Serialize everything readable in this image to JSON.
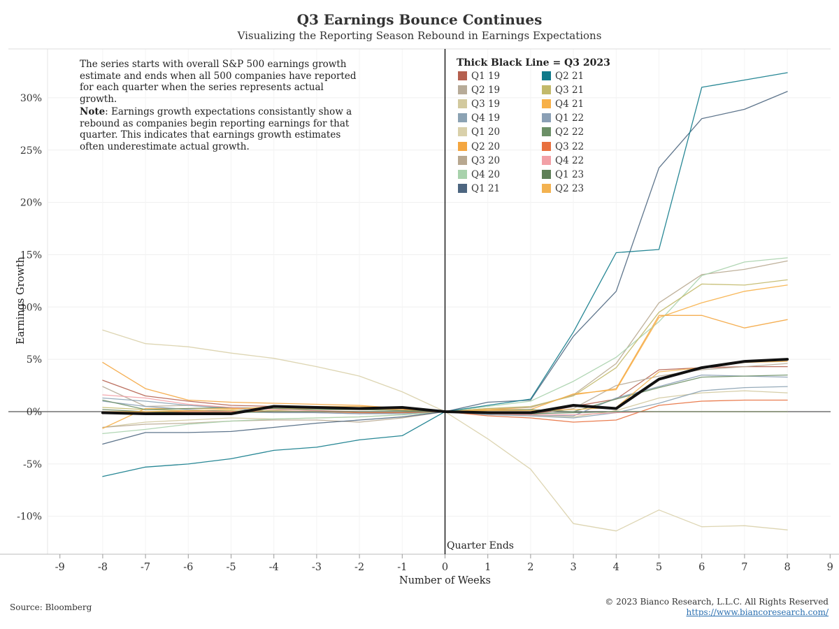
{
  "header": {
    "title": "Q3 Earnings Bounce Continues",
    "subtitle": "Visualizing the Reporting Season Rebound in Earnings Expectations"
  },
  "notes": {
    "line1": "The series starts with overall S&P 500 earnings growth estimate and ends when all 500 companies have reported for each quarter when the series represents actual growth.",
    "note_label": "Note",
    "line2": ": Earnings growth expectations consistantly show a rebound as companies begin reporting earnings for that quarter. This indicates that earnings growth estimates often underestimate actual growth."
  },
  "legend": {
    "title": "Thick Black Line = Q3 2023"
  },
  "footer": {
    "source": "Source: Bloomberg",
    "copyright": "© 2023 Bianco Research, L.L.C. All Rights Reserved",
    "url": "https://www.biancoresearch.com/"
  },
  "chart_data": {
    "type": "line",
    "title": "Q3 Earnings Bounce Continues",
    "subtitle": "Visualizing the Reporting Season Rebound in Earnings Expectations",
    "xlabel": "Number of Weeks",
    "ylabel": "Earnings Growth",
    "zero_annotation": "Quarter Ends",
    "xlim": [
      -9,
      9
    ],
    "ylim": [
      -13.5,
      34.5
    ],
    "x_ticks": [
      -9,
      -8,
      -7,
      -6,
      -5,
      -4,
      -3,
      -2,
      -1,
      0,
      1,
      2,
      3,
      4,
      5,
      6,
      7,
      8,
      9
    ],
    "y_ticks": [
      -10,
      -5,
      0,
      5,
      10,
      15,
      20,
      25,
      30
    ],
    "y_tick_labels": [
      "-10%",
      "-5%",
      "0%",
      "5%",
      "10%",
      "15%",
      "20%",
      "25%",
      "30%"
    ],
    "grid": true,
    "legend_placement": "top-center",
    "x": [
      -8,
      -7,
      -6,
      -5,
      -4,
      -3,
      -2,
      -1,
      0,
      1,
      2,
      3,
      4,
      5,
      6,
      7,
      8
    ],
    "highlight_series": "Q3 23",
    "series": [
      {
        "name": "Q1 19",
        "color": "#b5604f",
        "values": [
          3.0,
          1.5,
          1.0,
          0.6,
          0.5,
          0.4,
          0.3,
          0.2,
          0,
          -0.2,
          -0.3,
          0.5,
          1.2,
          4.0,
          4.2,
          4.3,
          4.3
        ]
      },
      {
        "name": "Q2 19",
        "color": "#b7ab98",
        "values": [
          2.4,
          0.5,
          0.6,
          0.4,
          0.2,
          0.1,
          -0.1,
          -0.1,
          0,
          -0.2,
          -0.3,
          0.3,
          2.5,
          3.4,
          4.0,
          4.3,
          4.6
        ]
      },
      {
        "name": "Q3 19",
        "color": "#d2c99e",
        "values": [
          -1.5,
          -1.0,
          -0.8,
          -0.6,
          -0.7,
          -0.6,
          -0.5,
          -0.3,
          0,
          -0.2,
          -0.4,
          -0.5,
          0.1,
          1.3,
          1.8,
          2.0,
          1.8
        ]
      },
      {
        "name": "Q4 19",
        "color": "#8ba2b3",
        "values": [
          1.3,
          1.0,
          0.6,
          0.3,
          0.0,
          -0.1,
          -0.2,
          -0.2,
          0,
          -0.3,
          -0.4,
          -0.6,
          -0.1,
          0.8,
          2.0,
          2.3,
          2.4
        ]
      },
      {
        "name": "Q1 20",
        "color": "#d9d0aa",
        "values": [
          7.8,
          6.5,
          6.2,
          5.6,
          5.1,
          4.3,
          3.4,
          1.9,
          0,
          -2.6,
          -5.5,
          -10.7,
          -11.4,
          -9.4,
          -11.0,
          -10.9,
          -11.3
        ]
      },
      {
        "name": "Q2 20",
        "color": "#f4a640",
        "values": [
          4.7,
          2.2,
          1.1,
          0.9,
          0.8,
          0.7,
          0.6,
          0.3,
          0,
          0.2,
          0.4,
          1.6,
          2.2,
          9.2,
          9.2,
          8.0,
          8.8
        ]
      },
      {
        "name": "Q3 20",
        "color": "#b8a890",
        "values": [
          -1.5,
          -1.2,
          -1.1,
          -0.9,
          -0.8,
          -0.8,
          -1.0,
          -0.6,
          0,
          0.3,
          0.4,
          1.6,
          4.6,
          10.4,
          13.1,
          13.6,
          14.4
        ]
      },
      {
        "name": "Q4 20",
        "color": "#a8d2ac",
        "values": [
          -2.1,
          -1.7,
          -1.2,
          -0.9,
          -0.7,
          -0.6,
          -0.5,
          -0.3,
          0,
          0.5,
          1.0,
          2.9,
          5.2,
          8.6,
          13.0,
          14.3,
          14.7
        ]
      },
      {
        "name": "Q1 21",
        "color": "#4d6680",
        "values": [
          -3.1,
          -2.0,
          -2.0,
          -1.9,
          -1.5,
          -1.1,
          -0.8,
          -0.5,
          0,
          0.9,
          1.1,
          7.2,
          11.5,
          23.3,
          28.0,
          28.9,
          30.6
        ]
      },
      {
        "name": "Q2 21",
        "color": "#0f7a8a",
        "values": [
          -6.2,
          -5.3,
          -5.0,
          -4.5,
          -3.7,
          -3.4,
          -2.7,
          -2.3,
          0,
          0.6,
          1.2,
          7.6,
          15.2,
          15.5,
          31.0,
          31.7,
          32.4
        ]
      },
      {
        "name": "Q3 21",
        "color": "#c2b96a",
        "values": [
          0.4,
          0.2,
          0.1,
          0.1,
          0.1,
          0.2,
          0.2,
          0.1,
          0,
          0.3,
          0.5,
          1.5,
          4.2,
          9.5,
          12.2,
          12.1,
          12.6
        ]
      },
      {
        "name": "Q4 21",
        "color": "#f7b048",
        "values": [
          -1.6,
          0.3,
          0.3,
          0.3,
          0.3,
          0.3,
          0.3,
          0.2,
          0,
          0.2,
          0.2,
          1.7,
          2.1,
          9.0,
          10.4,
          11.5,
          12.1
        ]
      },
      {
        "name": "Q1 22",
        "color": "#8a9fb5",
        "values": [
          1.0,
          0.5,
          0.2,
          0.0,
          -0.1,
          -0.1,
          -0.2,
          -0.1,
          0,
          -0.2,
          -0.3,
          -0.4,
          1.3,
          2.4,
          3.5,
          3.4,
          3.3
        ]
      },
      {
        "name": "Q2 22",
        "color": "#6b8f66",
        "values": [
          1.1,
          0.2,
          0.3,
          0.4,
          0.3,
          0.2,
          0.2,
          0.1,
          0,
          0.1,
          0.2,
          0.0,
          1.2,
          2.3,
          3.3,
          3.4,
          3.5
        ]
      },
      {
        "name": "Q3 22",
        "color": "#e8703e",
        "values": [
          -0.2,
          0.0,
          0.0,
          0.0,
          0.0,
          0.0,
          -0.1,
          -0.1,
          0,
          -0.4,
          -0.6,
          -1.0,
          -0.8,
          0.6,
          1.0,
          1.1,
          1.1
        ]
      },
      {
        "name": "Q4 22",
        "color": "#f2a0a6",
        "values": [
          1.6,
          1.3,
          0.7,
          0.4,
          0.2,
          0.1,
          0.0,
          0.0,
          0,
          -0.2,
          -0.3,
          -0.3,
          -0.1,
          0.0,
          0.0,
          0.0,
          0.0
        ]
      },
      {
        "name": "Q1 23",
        "color": "#5e7f57",
        "values": [
          0.2,
          0.0,
          -0.1,
          -0.1,
          0.0,
          0.0,
          0.0,
          0.0,
          0,
          -0.1,
          -0.2,
          -0.1,
          0.0,
          0.0,
          0.0,
          0.0,
          0.0
        ]
      },
      {
        "name": "Q2 23",
        "color": "#f3b250",
        "values": [
          0.0,
          0.0,
          0.1,
          0.2,
          0.5,
          0.5,
          0.5,
          0.3,
          0,
          0.1,
          0.1,
          0.2,
          0.4,
          3.8,
          4.2,
          4.7,
          4.8
        ]
      },
      {
        "name": "Q3 23",
        "color": "#111111",
        "thick": true,
        "values": [
          -0.1,
          -0.2,
          -0.2,
          -0.2,
          0.5,
          0.4,
          0.3,
          0.4,
          0,
          -0.1,
          -0.1,
          0.6,
          0.3,
          3.1,
          4.2,
          4.8,
          5.0
        ]
      }
    ]
  }
}
